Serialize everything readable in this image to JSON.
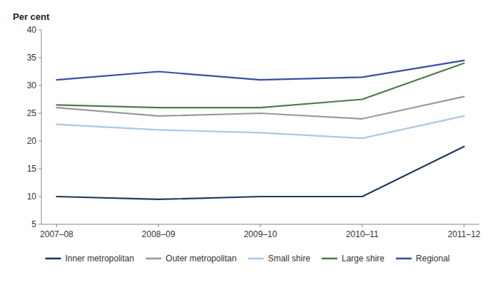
{
  "chart_data": {
    "type": "line",
    "y_label": "Per cent",
    "categories": [
      "2007–08",
      "2008–09",
      "2009–10",
      "2010–11",
      "2011–12"
    ],
    "series": [
      {
        "name": "Inner metropolitan",
        "color": "#1a3a5c",
        "values": [
          10.0,
          9.5,
          10.0,
          10.0,
          19.0
        ]
      },
      {
        "name": "Outer metropolitan",
        "color": "#999999",
        "values": [
          26.0,
          24.5,
          25.0,
          24.0,
          28.0
        ]
      },
      {
        "name": "Small shire",
        "color": "#a8c8e8",
        "values": [
          23.0,
          22.0,
          21.5,
          20.5,
          24.5
        ]
      },
      {
        "name": "Large shire",
        "color": "#4a7c4e",
        "values": [
          26.5,
          26.0,
          26.0,
          27.5,
          34.0
        ]
      },
      {
        "name": "Regional",
        "color": "#3a4d9f",
        "values": [
          31.0,
          32.5,
          31.0,
          31.5,
          34.5
        ]
      }
    ],
    "ylim": [
      5,
      40
    ],
    "yticks": [
      5,
      10,
      15,
      20,
      25,
      30,
      35,
      40
    ],
    "grid": false,
    "legend": "bottom"
  }
}
